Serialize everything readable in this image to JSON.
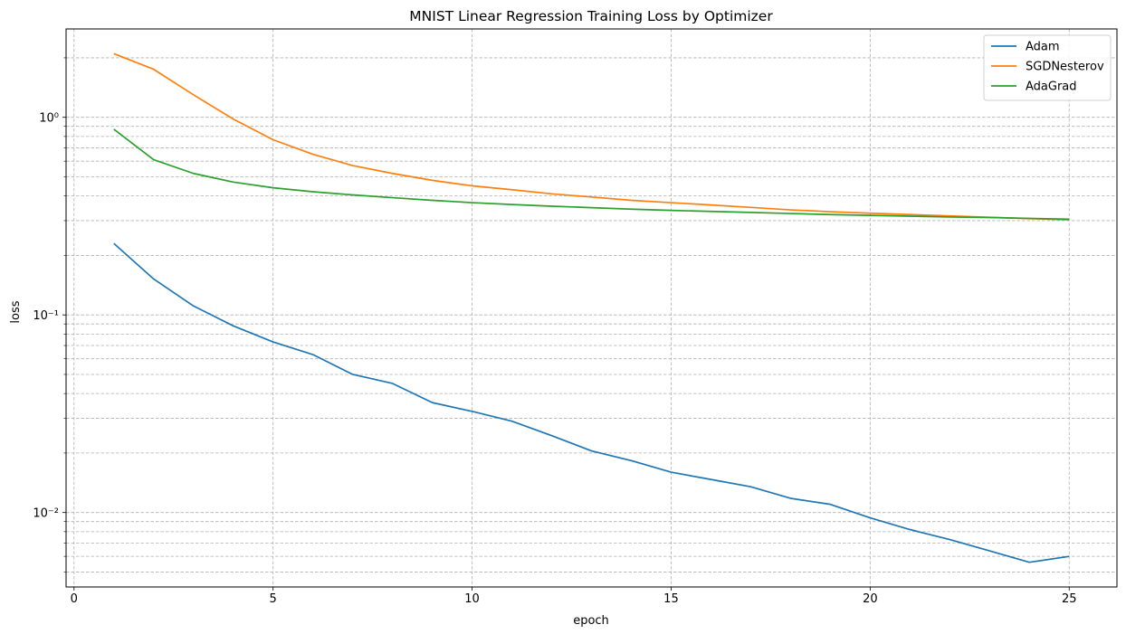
{
  "chart_data": {
    "type": "line",
    "title": "MNIST Linear Regression Training Loss by Optimizer",
    "xlabel": "epoch",
    "ylabel": "loss",
    "yscale": "log",
    "xlim": [
      -0.2,
      26.2
    ],
    "ylim": [
      0.0042,
      2.8
    ],
    "xticks": [
      0,
      5,
      10,
      15,
      20,
      25
    ],
    "yticks": [
      {
        "value": 1,
        "label": "10⁰"
      },
      {
        "value": 0.1,
        "label": "10⁻¹"
      },
      {
        "value": 0.01,
        "label": "10⁻²"
      }
    ],
    "grid": true,
    "grid_style": "dashed",
    "legend_position": "top-right",
    "x": [
      1,
      2,
      3,
      4,
      5,
      6,
      7,
      8,
      9,
      10,
      11,
      12,
      13,
      14,
      15,
      16,
      17,
      18,
      19,
      20,
      21,
      22,
      23,
      24,
      25
    ],
    "series": [
      {
        "name": "Adam",
        "color": "#1f77b4",
        "values": [
          0.23,
          0.152,
          0.111,
          0.088,
          0.073,
          0.063,
          0.05,
          0.045,
          0.036,
          0.0325,
          0.029,
          0.0245,
          0.0205,
          0.0183,
          0.016,
          0.0147,
          0.0135,
          0.0118,
          0.011,
          0.0094,
          0.0082,
          0.0073,
          0.0064,
          0.0056,
          0.006
        ]
      },
      {
        "name": "SGDNesterov",
        "color": "#ff7f0e",
        "values": [
          2.1,
          1.75,
          1.3,
          0.98,
          0.77,
          0.65,
          0.57,
          0.52,
          0.48,
          0.45,
          0.43,
          0.41,
          0.395,
          0.38,
          0.37,
          0.36,
          0.35,
          0.34,
          0.333,
          0.327,
          0.322,
          0.317,
          0.312,
          0.307,
          0.303
        ]
      },
      {
        "name": "AdaGrad",
        "color": "#2ca02c",
        "values": [
          0.87,
          0.61,
          0.52,
          0.47,
          0.44,
          0.42,
          0.405,
          0.392,
          0.38,
          0.37,
          0.362,
          0.355,
          0.349,
          0.343,
          0.338,
          0.334,
          0.33,
          0.326,
          0.322,
          0.319,
          0.316,
          0.313,
          0.311,
          0.308,
          0.305
        ]
      }
    ]
  }
}
